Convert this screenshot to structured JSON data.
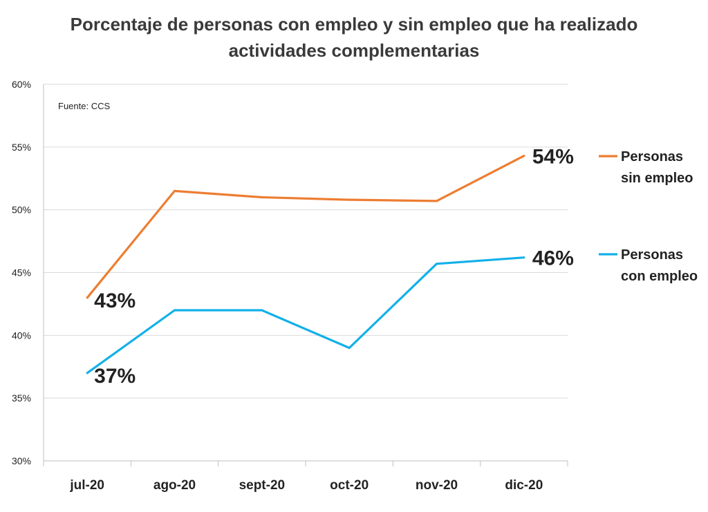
{
  "chart_data": {
    "type": "line",
    "title_lines": [
      "Porcentaje de personas con empleo y sin empleo que ha realizado",
      "actividades complementarias"
    ],
    "source": "Fuente: CCS",
    "categories": [
      "jul-20",
      "ago-20",
      "sept-20",
      "oct-20",
      "nov-20",
      "dic-20"
    ],
    "y_ticks": [
      "30%",
      "35%",
      "40%",
      "45%",
      "50%",
      "55%",
      "60%"
    ],
    "ylim": [
      30,
      60
    ],
    "grid": true,
    "legend_position": "right",
    "series": [
      {
        "name_lines": [
          "Personas",
          "sin empleo"
        ],
        "color": "#ed7d31",
        "values": [
          43.0,
          51.5,
          51.0,
          50.8,
          50.7,
          54.3
        ],
        "labels": [
          {
            "index": 0,
            "text": "43%"
          },
          {
            "index": 5,
            "text": "54%"
          }
        ]
      },
      {
        "name_lines": [
          "Personas",
          "con empleo"
        ],
        "color": "#12b0e8",
        "values": [
          37.0,
          42.0,
          42.0,
          39.0,
          45.7,
          46.2
        ],
        "labels": [
          {
            "index": 0,
            "text": "37%"
          },
          {
            "index": 5,
            "text": "46%"
          }
        ]
      }
    ]
  }
}
